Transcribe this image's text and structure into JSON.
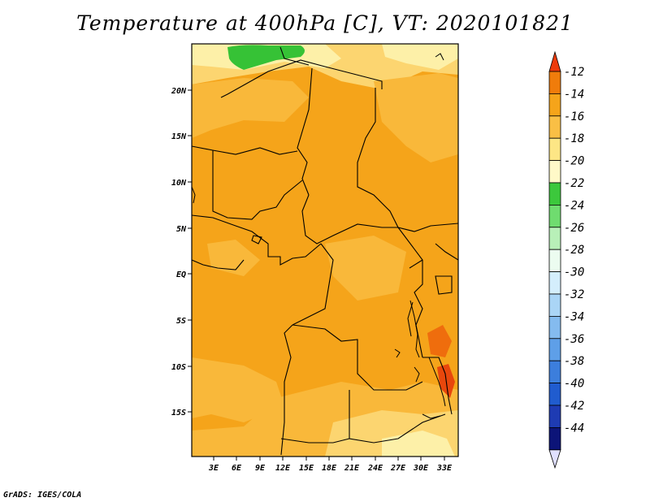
{
  "title": "Temperature at 400hPa [C], VT: 2020101821",
  "credit": "GrADS: IGES/COLA",
  "map": {
    "lat_ticks": [
      "20N",
      "15N",
      "10N",
      "5N",
      "EQ",
      "5S",
      "10S",
      "15S"
    ],
    "lon_ticks": [
      "3E",
      "6E",
      "9E",
      "12E",
      "15E",
      "18E",
      "21E",
      "24E",
      "27E",
      "30E",
      "33E"
    ],
    "field_colors": {
      "base": "#f5a41a",
      "mid": "#f9b83a",
      "light": "#fcd570",
      "pale": "#fdf0a8",
      "warm": "#ef6d0d",
      "green": "#36c236"
    }
  },
  "colorbar": {
    "labels": [
      "-12",
      "-14",
      "-16",
      "-18",
      "-20",
      "-22",
      "-24",
      "-26",
      "-28",
      "-30",
      "-32",
      "-34",
      "-36",
      "-38",
      "-40",
      "-42",
      "-44"
    ],
    "colors": [
      "#ee3b0c",
      "#f07c0b",
      "#f5a41a",
      "#f9bf45",
      "#fde685",
      "#fff9c8",
      "#3cc83c",
      "#6fdc6f",
      "#b8f0b8",
      "#ecfcf0",
      "#d4eefc",
      "#aad5f6",
      "#84bbef",
      "#5e9fe8",
      "#3c7edc",
      "#205ccf",
      "#1e3bb3",
      "#0c1478",
      "#e0e0ff"
    ]
  }
}
